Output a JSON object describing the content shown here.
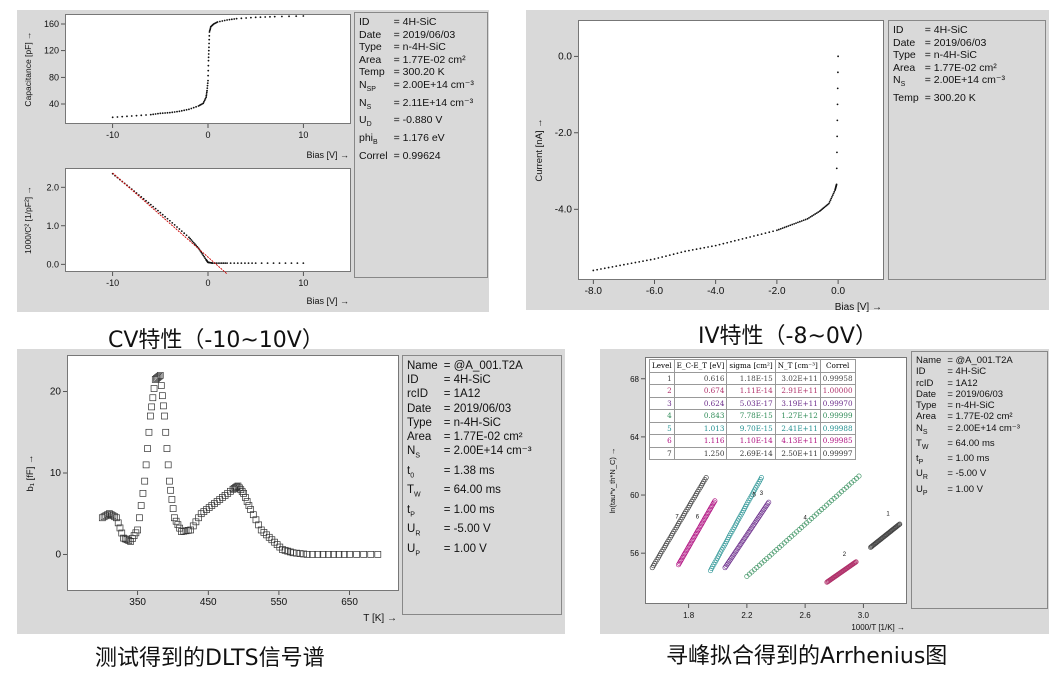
{
  "captions": {
    "cv": "CV特性（-10~10V）",
    "iv": "IV特性（-8~0V）",
    "dlts": "测试得到的DLTS信号谱",
    "arrhenius": "寻峰拟合得到的Arrhenius图"
  },
  "cv_info": [
    {
      "k": "ID",
      "v": "= 4H-SiC"
    },
    {
      "k": "Date",
      "v": "= 2019/06/03"
    },
    {
      "k": "Type",
      "v": "= n-4H-SiC"
    },
    {
      "k": "Area",
      "v": "= 1.77E-02  cm²"
    },
    {
      "k": "Temp",
      "v": "= 300.20  K"
    },
    {
      "k": "N_SP",
      "v": "= 2.00E+14  cm⁻³"
    },
    {
      "k": "N_S",
      "v": "= 2.11E+14  cm⁻³"
    },
    {
      "k": "U_D",
      "v": "= -0.880  V"
    },
    {
      "k": "phi_B",
      "v": "=  1.176  eV"
    },
    {
      "k": "Correl",
      "v": "= 0.99624"
    }
  ],
  "iv_info": [
    {
      "k": "ID",
      "v": "=  4H-SiC"
    },
    {
      "k": "Date",
      "v": "=  2019/06/03"
    },
    {
      "k": "Type",
      "v": "=  n-4H-SiC"
    },
    {
      "k": "Area",
      "v": "=  1.77E-02   cm²"
    },
    {
      "k": "N_S",
      "v": "=  2.00E+14  cm⁻³"
    },
    {
      "k": "Temp",
      "v": "=  300.20   K"
    }
  ],
  "dlts_info": [
    {
      "k": "Name",
      "v": "= @A_001.T2A"
    },
    {
      "k": "ID",
      "v": "= 4H-SiC"
    },
    {
      "k": "rcID",
      "v": "= 1A12"
    },
    {
      "k": "Date",
      "v": "= 2019/06/03"
    },
    {
      "k": "Type",
      "v": "= n-4H-SiC"
    },
    {
      "k": "Area",
      "v": "= 1.77E-02   cm²"
    },
    {
      "k": "N_S",
      "v": "= 2.00E+14  cm⁻³"
    },
    {
      "k": "t_0",
      "v": "=     1.38   ms"
    },
    {
      "k": "T_W",
      "v": "=   64.00   ms"
    },
    {
      "k": "t_P",
      "v": "=     1.00   ms"
    },
    {
      "k": "U_R",
      "v": "=   -5.00   V"
    },
    {
      "k": "U_P",
      "v": "=     1.00   V"
    }
  ],
  "arr_info": [
    {
      "k": "Name",
      "v": "= @A_001.T2A"
    },
    {
      "k": "ID",
      "v": "= 4H-SiC"
    },
    {
      "k": "rcID",
      "v": "= 1A12"
    },
    {
      "k": "Date",
      "v": "= 2019/06/03"
    },
    {
      "k": "Type",
      "v": "= n-4H-SiC"
    },
    {
      "k": "Area",
      "v": "= 1.77E-02  cm²"
    },
    {
      "k": "N_S",
      "v": "= 2.00E+14  cm⁻³"
    },
    {
      "k": "T_W",
      "v": "=    64.00   ms"
    },
    {
      "k": "t_P",
      "v": "=      1.00   ms"
    },
    {
      "k": "U_R",
      "v": "=    -5.00   V"
    },
    {
      "k": "U_P",
      "v": "=      1.00   V"
    }
  ],
  "level_table": {
    "headers": [
      "Level",
      "E_C-E_T [eV]",
      "sigma [cm²]",
      "N_T [cm⁻³]",
      "Correl"
    ],
    "rows": [
      {
        "level": "1",
        "e": "0.616",
        "sigma": "1.18E-15",
        "nt": "3.02E+11",
        "correl": "0.99958",
        "color": "#444444"
      },
      {
        "level": "2",
        "e": "0.674",
        "sigma": "1.11E-14",
        "nt": "2.91E+11",
        "correl": "1.00000",
        "color": "#b0306a"
      },
      {
        "level": "3",
        "e": "0.624",
        "sigma": "5.03E-17",
        "nt": "3.19E+11",
        "correl": "0.99970",
        "color": "#6a2b8a"
      },
      {
        "level": "4",
        "e": "0.843",
        "sigma": "7.78E-15",
        "nt": "1.27E+12",
        "correl": "0.99999",
        "color": "#2e8b57"
      },
      {
        "level": "5",
        "e": "1.013",
        "sigma": "9.70E-15",
        "nt": "2.41E+11",
        "correl": "0.99988",
        "color": "#1f8f8f"
      },
      {
        "level": "6",
        "e": "1.116",
        "sigma": "1.10E-14",
        "nt": "4.13E+11",
        "correl": "0.99985",
        "color": "#b01080"
      },
      {
        "level": "7",
        "e": "1.250",
        "sigma": "2.69E-14",
        "nt": "2.50E+11",
        "correl": "0.99997",
        "color": "#333333"
      }
    ]
  },
  "chart_data": [
    {
      "id": "cv_capacitance",
      "type": "scatter",
      "xlabel": "Bias [V] →",
      "ylabel": "Capacitance [pF] →",
      "xlim": [
        -15,
        15
      ],
      "ylim": [
        10,
        175
      ],
      "xticks": [
        -10,
        0,
        10
      ],
      "yticks": [
        40,
        80,
        120,
        160
      ],
      "ytick_labels": [
        "40",
        "80",
        "120",
        "160"
      ],
      "series": [
        {
          "color": "#111111",
          "points": [
            [
              -10,
              20
            ],
            [
              -8,
              22
            ],
            [
              -6,
              24
            ],
            [
              -5,
              26
            ],
            [
              -4,
              27
            ],
            [
              -3,
              29
            ],
            [
              -2,
              32
            ],
            [
              -1,
              37
            ],
            [
              -0.5,
              41
            ],
            [
              -0.2,
              50
            ],
            [
              -0.1,
              60
            ],
            [
              0,
              75
            ],
            [
              0.05,
              105
            ],
            [
              0.1,
              125
            ],
            [
              0.15,
              148
            ],
            [
              0.3,
              156
            ],
            [
              0.6,
              160
            ],
            [
              1,
              163
            ],
            [
              2,
              166
            ],
            [
              3,
              168
            ],
            [
              5,
              170
            ],
            [
              7,
              171
            ],
            [
              10,
              172
            ]
          ]
        }
      ]
    },
    {
      "id": "cv_mott",
      "type": "scatter",
      "xlabel": "Bias [V] →",
      "ylabel": "1000/C² [1/pF²] →",
      "xlim": [
        -15,
        15
      ],
      "ylim": [
        -0.2,
        2.5
      ],
      "xticks": [
        -10,
        0,
        10
      ],
      "yticks": [
        0,
        1,
        2
      ],
      "ytick_labels": [
        "0.0",
        "1.0",
        "2.0"
      ],
      "series": [
        {
          "color": "#111111",
          "points": [
            [
              -10,
              2.35
            ],
            [
              -8,
              1.95
            ],
            [
              -6,
              1.55
            ],
            [
              -4,
              1.13
            ],
            [
              -2,
              0.7
            ],
            [
              -1,
              0.42
            ],
            [
              -0.2,
              0.12
            ],
            [
              0,
              0.05
            ],
            [
              0.5,
              0.03
            ],
            [
              2,
              0.03
            ],
            [
              5,
              0.03
            ],
            [
              10,
              0.03
            ]
          ]
        },
        {
          "color": "#cc0000",
          "line": true,
          "points": [
            [
              -10,
              2.37
            ],
            [
              2,
              -0.25
            ]
          ]
        }
      ]
    },
    {
      "id": "iv",
      "type": "scatter",
      "xlabel": "Bias [V] →",
      "ylabel": "Current [nA] →",
      "xlim": [
        -8.5,
        1.5
      ],
      "ylim": [
        -5.85,
        0.95
      ],
      "xticks": [
        -8,
        -6,
        -4,
        -2,
        0
      ],
      "yticks": [
        0,
        -2,
        -4
      ],
      "ytick_labels": [
        "0.0",
        "-2.0",
        "-4.0"
      ],
      "xtick_labels": [
        "-8.0",
        "-6.0",
        "-4.0",
        "-2.0",
        "0.0"
      ],
      "series": [
        {
          "color": "#111111",
          "points": [
            [
              -8,
              -5.6
            ],
            [
              -7,
              -5.45
            ],
            [
              -6,
              -5.3
            ],
            [
              -5,
              -5.1
            ],
            [
              -4,
              -4.95
            ],
            [
              -3,
              -4.75
            ],
            [
              -2,
              -4.55
            ],
            [
              -1.5,
              -4.4
            ],
            [
              -1,
              -4.25
            ],
            [
              -0.6,
              -4.05
            ],
            [
              -0.3,
              -3.85
            ],
            [
              -0.1,
              -3.5
            ],
            [
              -0.05,
              -3.35
            ],
            [
              0,
              0.0
            ]
          ]
        }
      ]
    },
    {
      "id": "dlts",
      "type": "scatter",
      "xlabel": "T [K] →",
      "ylabel": "b₁ [fF] →",
      "xlim": [
        250,
        720
      ],
      "ylim": [
        -4.5,
        24.5
      ],
      "xticks": [
        350,
        450,
        550,
        650
      ],
      "yticks": [
        0,
        10,
        20
      ],
      "ytick_labels": [
        "0",
        "10",
        "20"
      ],
      "series": [
        {
          "color": "#333333",
          "marker": "square",
          "points": [
            [
              300,
              4.5
            ],
            [
              310,
              5.0
            ],
            [
              320,
              4.5
            ],
            [
              330,
              2.0
            ],
            [
              340,
              1.6
            ],
            [
              350,
              3.0
            ],
            [
              360,
              9.0
            ],
            [
              368,
              17.0
            ],
            [
              375,
              21.5
            ],
            [
              382,
              22.0
            ],
            [
              388,
              17.0
            ],
            [
              395,
              9.0
            ],
            [
              402,
              4.5
            ],
            [
              412,
              2.8
            ],
            [
              425,
              3.0
            ],
            [
              440,
              5.0
            ],
            [
              455,
              6.0
            ],
            [
              470,
              7.0
            ],
            [
              485,
              8.0
            ],
            [
              492,
              8.4
            ],
            [
              500,
              7.5
            ],
            [
              510,
              5.5
            ],
            [
              525,
              3.0
            ],
            [
              540,
              1.8
            ],
            [
              555,
              0.6
            ],
            [
              570,
              0.2
            ],
            [
              590,
              0.0
            ],
            [
              620,
              0.0
            ],
            [
              650,
              0.0
            ],
            [
              690,
              0.0
            ]
          ]
        }
      ]
    },
    {
      "id": "arrhenius",
      "type": "scatter",
      "xlabel": "1000/T [1/K] →",
      "ylabel": "ln(tau*v_th*N_C) →",
      "xlim": [
        1.5,
        3.3
      ],
      "ylim": [
        52.5,
        69.5
      ],
      "xticks": [
        1.8,
        2.2,
        2.6,
        3.0
      ],
      "xtick_labels": [
        "1.8",
        "2.2",
        "2.6",
        "3.0"
      ],
      "yticks": [
        56,
        60,
        64,
        68
      ],
      "ytick_labels": [
        "56",
        "60",
        "64",
        "68"
      ],
      "series": [
        {
          "name": "1",
          "color": "#444444",
          "points": [
            [
              3.05,
              56.4
            ],
            [
              3.25,
              58.0
            ]
          ]
        },
        {
          "name": "2",
          "color": "#b0306a",
          "points": [
            [
              2.75,
              54.0
            ],
            [
              2.95,
              55.4
            ]
          ]
        },
        {
          "name": "3",
          "color": "#6a2b8a",
          "points": [
            [
              2.05,
              55.0
            ],
            [
              2.35,
              59.5
            ]
          ]
        },
        {
          "name": "4",
          "color": "#2e8b57",
          "points": [
            [
              2.2,
              54.4
            ],
            [
              2.97,
              61.3
            ]
          ]
        },
        {
          "name": "5",
          "color": "#1f8f8f",
          "points": [
            [
              1.95,
              54.8
            ],
            [
              2.3,
              61.2
            ]
          ]
        },
        {
          "name": "6",
          "color": "#b01080",
          "points": [
            [
              1.73,
              55.2
            ],
            [
              1.98,
              59.6
            ]
          ]
        },
        {
          "name": "7",
          "color": "#333333",
          "points": [
            [
              1.55,
              55.0
            ],
            [
              1.92,
              61.2
            ]
          ]
        }
      ],
      "labels_at": [
        {
          "name": "1",
          "x": 3.17,
          "y": 58.6
        },
        {
          "name": "2",
          "x": 2.87,
          "y": 55.8
        },
        {
          "name": "3",
          "x": 2.3,
          "y": 60.0
        },
        {
          "name": "4",
          "x": 2.6,
          "y": 58.3
        },
        {
          "name": "5",
          "x": 2.25,
          "y": 59.9
        },
        {
          "name": "6",
          "x": 1.86,
          "y": 58.4
        },
        {
          "name": "7",
          "x": 1.72,
          "y": 58.4
        }
      ]
    }
  ]
}
